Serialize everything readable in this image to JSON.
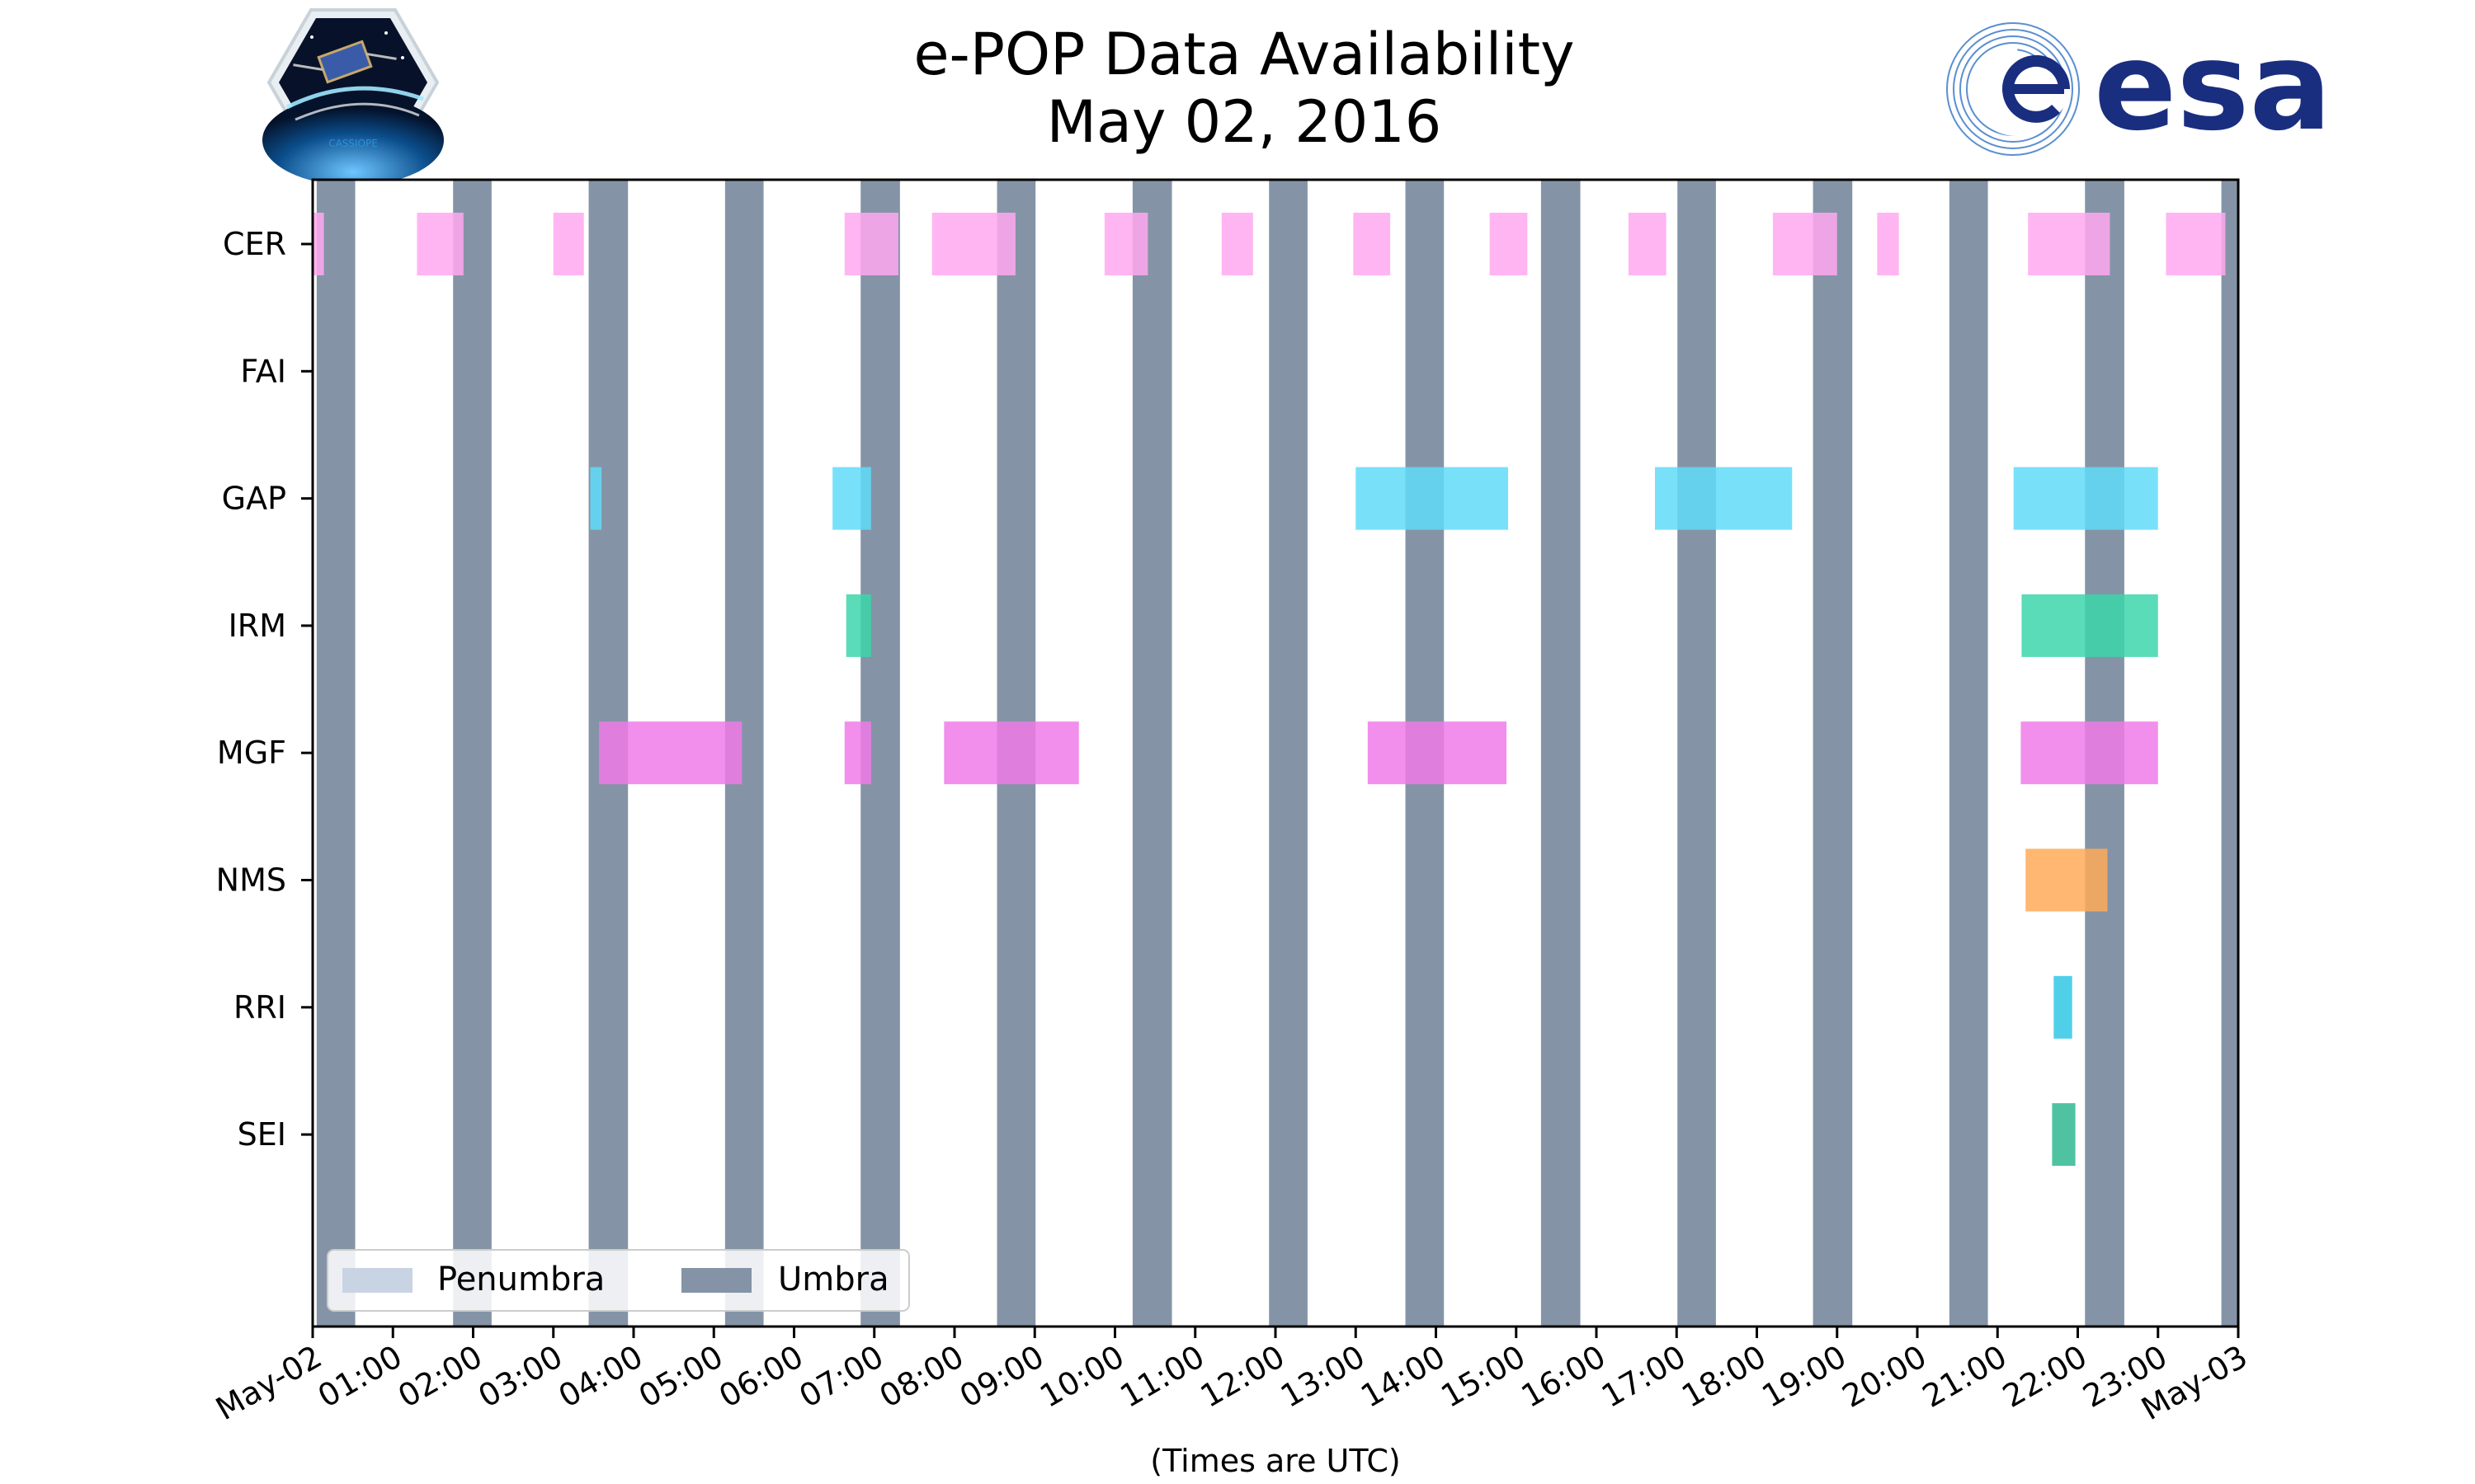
{
  "chart_data": {
    "type": "timeline",
    "title_line1": "e-POP Data Availability",
    "title_line2": "May 02, 2016",
    "xlabel": "(Times are UTC)",
    "x_range_hours": [
      0,
      24
    ],
    "x_tick_hours": [
      0,
      1,
      2,
      3,
      4,
      5,
      6,
      7,
      8,
      9,
      10,
      11,
      12,
      13,
      14,
      15,
      16,
      17,
      18,
      19,
      20,
      21,
      22,
      23,
      24
    ],
    "x_tick_labels": [
      "May-02",
      "01:00",
      "02:00",
      "03:00",
      "04:00",
      "05:00",
      "06:00",
      "07:00",
      "08:00",
      "09:00",
      "10:00",
      "11:00",
      "12:00",
      "13:00",
      "14:00",
      "15:00",
      "16:00",
      "17:00",
      "18:00",
      "19:00",
      "20:00",
      "21:00",
      "22:00",
      "23:00",
      "May-03"
    ],
    "instruments": [
      "CER",
      "FAI",
      "GAP",
      "IRM",
      "MGF",
      "NMS",
      "RRI",
      "SEI"
    ],
    "umbra_intervals": [
      [
        0.05,
        0.53
      ],
      [
        1.75,
        2.23
      ],
      [
        3.44,
        3.93
      ],
      [
        5.14,
        5.62
      ],
      [
        6.83,
        7.32
      ],
      [
        8.53,
        9.01
      ],
      [
        10.22,
        10.71
      ],
      [
        11.92,
        12.4
      ],
      [
        13.62,
        14.1
      ],
      [
        15.31,
        15.8
      ],
      [
        17.01,
        17.49
      ],
      [
        18.7,
        19.19
      ],
      [
        20.4,
        20.88
      ],
      [
        22.09,
        22.58
      ],
      [
        23.79,
        24.0
      ]
    ],
    "data_intervals": {
      "CER": [
        [
          0.0,
          0.14
        ],
        [
          1.3,
          1.88
        ],
        [
          3.0,
          3.38
        ],
        [
          6.63,
          7.3
        ],
        [
          7.72,
          8.76
        ],
        [
          9.87,
          10.41
        ],
        [
          11.33,
          11.72
        ],
        [
          12.97,
          13.43
        ],
        [
          14.67,
          15.14
        ],
        [
          16.4,
          16.87
        ],
        [
          18.2,
          19.0
        ],
        [
          19.5,
          19.77
        ],
        [
          21.38,
          22.4
        ],
        [
          23.1,
          23.84
        ]
      ],
      "FAI": [],
      "GAP": [
        [
          3.46,
          3.6
        ],
        [
          6.48,
          6.96
        ],
        [
          13.0,
          14.9
        ],
        [
          16.73,
          18.44
        ],
        [
          21.2,
          23.0
        ]
      ],
      "IRM": [
        [
          6.65,
          6.96
        ],
        [
          21.3,
          23.0
        ]
      ],
      "MGF": [
        [
          3.57,
          5.35
        ],
        [
          6.63,
          6.96
        ],
        [
          7.87,
          9.55
        ],
        [
          13.15,
          14.88
        ],
        [
          21.29,
          23.0
        ]
      ],
      "NMS": [
        [
          21.35,
          22.37
        ]
      ],
      "RRI": [
        [
          21.7,
          21.93
        ]
      ],
      "SEI": [
        [
          21.68,
          21.97
        ]
      ]
    },
    "colors": {
      "CER": "#ffa8f0",
      "GAP": "#60dcf8",
      "IRM": "#3cd6aa",
      "MGF": "#f07ae8",
      "NMS": "#ffaa58",
      "RRI": "#30c8e4",
      "SEI": "#30b890",
      "umbra": "#8494a6",
      "penumbra": "#c8d4e4"
    },
    "legend": {
      "placement": "lower-left",
      "entries": [
        "Penumbra",
        "Umbra"
      ]
    }
  },
  "logos": {
    "left": {
      "name": "cassiope-mission-logo",
      "text": "CASSIOPE"
    },
    "right": {
      "name": "esa-logo",
      "text": "esa"
    }
  }
}
